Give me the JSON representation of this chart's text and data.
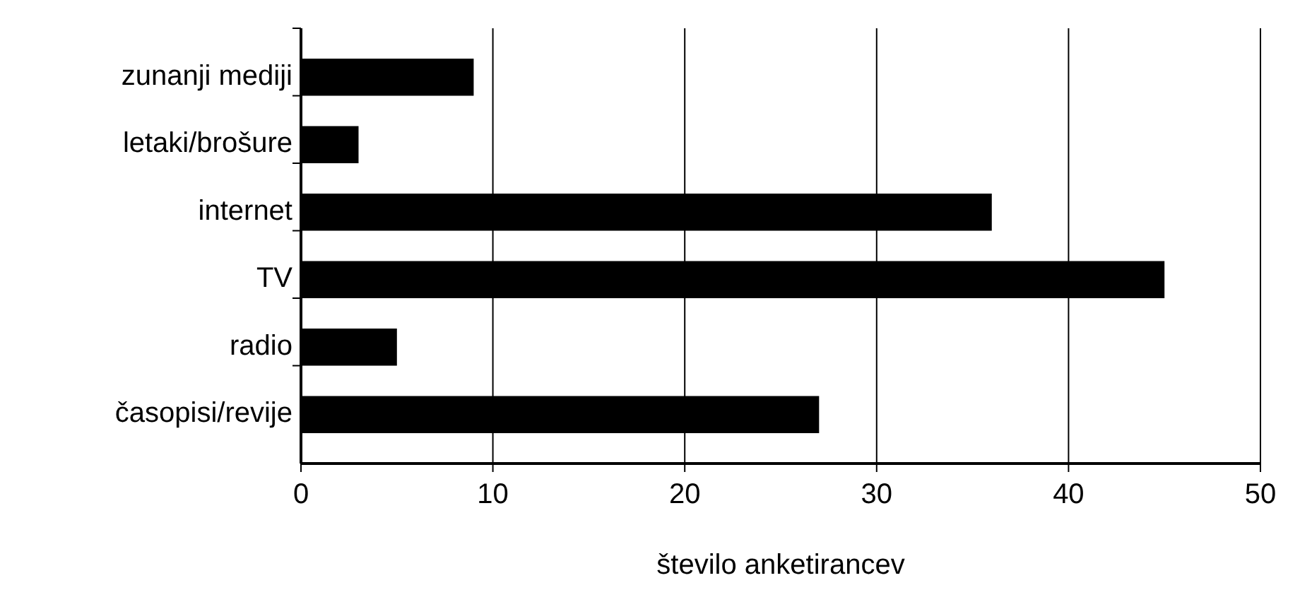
{
  "chart_data": {
    "type": "bar",
    "orientation": "horizontal",
    "xlabel": "število anketirancev",
    "categories": [
      "zunanji mediji",
      "letaki/brošure",
      "internet",
      "TV",
      "radio",
      "časopisi/revije"
    ],
    "values": [
      9,
      3,
      36,
      45,
      5,
      27
    ],
    "color": "#000000",
    "xlim": [
      0,
      50
    ],
    "xticks": [
      0,
      10,
      20,
      30,
      40,
      50
    ],
    "grid": "x"
  }
}
